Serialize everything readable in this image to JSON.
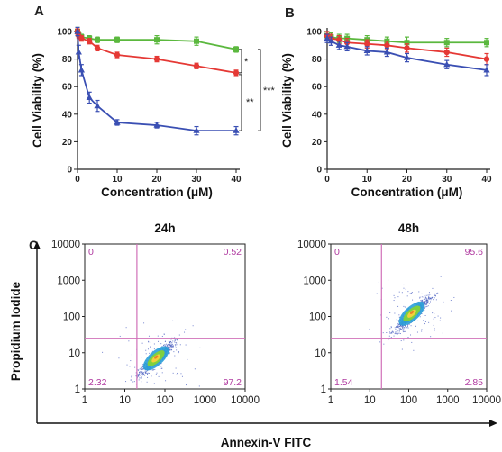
{
  "figure": {
    "panel_a_label": "A",
    "panel_b_label": "B",
    "panel_c_label": "C"
  },
  "chart_data": [
    {
      "panel": "A",
      "type": "line",
      "xlabel": "Concentration (μM)",
      "ylabel": "Cell Viability (%)",
      "xlim": [
        0,
        40
      ],
      "ylim": [
        0,
        100
      ],
      "xticks": [
        "0",
        "10",
        "20",
        "30",
        "40"
      ],
      "yticks": [
        "0",
        "20",
        "40",
        "60",
        "80",
        "100"
      ],
      "series": [
        {
          "color": "#5bb83e",
          "marker": "square",
          "x": [
            0,
            0.3,
            1,
            3,
            5,
            10,
            20,
            30,
            40
          ],
          "y": [
            100,
            98,
            96,
            95,
            94,
            94,
            94,
            93,
            87
          ],
          "err": [
            3,
            2,
            2,
            2,
            2,
            2,
            3,
            3,
            2
          ]
        },
        {
          "color": "#e53935",
          "marker": "circle",
          "x": [
            0,
            0.3,
            1,
            3,
            5,
            10,
            20,
            30,
            40
          ],
          "y": [
            100,
            97,
            95,
            93,
            88,
            83,
            80,
            75,
            70
          ],
          "err": [
            2,
            2,
            2,
            2,
            2,
            2,
            2,
            2,
            2
          ]
        },
        {
          "color": "#3a4fb3",
          "marker": "triangle",
          "x": [
            0,
            0.3,
            1,
            3,
            5,
            10,
            20,
            30,
            40
          ],
          "y": [
            100,
            85,
            72,
            52,
            46,
            34,
            32,
            28,
            28
          ],
          "err": [
            3,
            5,
            4,
            4,
            4,
            2,
            2,
            3,
            3
          ]
        }
      ],
      "significance": [
        "*",
        "**",
        "***"
      ]
    },
    {
      "panel": "B",
      "type": "line",
      "xlabel": "Concentration (μM)",
      "ylabel": "Cell Viability (%)",
      "xlim": [
        0,
        40
      ],
      "ylim": [
        0,
        100
      ],
      "xticks": [
        "0",
        "10",
        "20",
        "30",
        "40"
      ],
      "yticks": [
        "0",
        "20",
        "40",
        "60",
        "80",
        "100"
      ],
      "series": [
        {
          "color": "#5bb83e",
          "marker": "square",
          "x": [
            0,
            1,
            3,
            5,
            10,
            15,
            20,
            30,
            40
          ],
          "y": [
            97,
            96,
            95,
            95,
            94,
            93,
            92,
            92,
            92
          ],
          "err": [
            3,
            3,
            3,
            3,
            3,
            3,
            4,
            3,
            3
          ]
        },
        {
          "color": "#e53935",
          "marker": "circle",
          "x": [
            0,
            1,
            3,
            5,
            10,
            15,
            20,
            30,
            40
          ],
          "y": [
            97,
            95,
            94,
            92,
            91,
            90,
            88,
            85,
            80
          ],
          "err": [
            3,
            3,
            3,
            3,
            3,
            3,
            3,
            3,
            4
          ]
        },
        {
          "color": "#3a4fb3",
          "marker": "triangle",
          "x": [
            0,
            1,
            3,
            5,
            10,
            15,
            20,
            30,
            40
          ],
          "y": [
            95,
            93,
            90,
            89,
            86,
            85,
            81,
            76,
            72
          ],
          "err": [
            3,
            3,
            3,
            3,
            3,
            3,
            3,
            3,
            4
          ]
        }
      ]
    },
    {
      "panel": "C-24h",
      "type": "scatter",
      "title": "24h",
      "xscale": "log",
      "yscale": "log",
      "xlim": [
        1,
        10000
      ],
      "ylim": [
        1,
        10000
      ],
      "ticks": [
        "1",
        "10",
        "100",
        "1000",
        "10000"
      ],
      "gates": {
        "x": 20,
        "y": 25
      },
      "quadrants": {
        "upper_left": "0",
        "upper_right": "0.52",
        "lower_left": "2.32",
        "lower_right": "97.2"
      },
      "cluster_center": [
        60,
        7
      ],
      "xlabel": "Annexin-V FITC",
      "ylabel": "Propidium Iodide"
    },
    {
      "panel": "C-48h",
      "type": "scatter",
      "title": "48h",
      "xscale": "log",
      "yscale": "log",
      "xlim": [
        1,
        10000
      ],
      "ylim": [
        1,
        10000
      ],
      "ticks": [
        "1",
        "10",
        "100",
        "1000",
        "10000"
      ],
      "gates": {
        "x": 20,
        "y": 25
      },
      "quadrants": {
        "upper_left": "0",
        "upper_right": "95.6",
        "lower_left": "1.54",
        "lower_right": "2.85"
      },
      "cluster_center": [
        120,
        120
      ],
      "xlabel": "Annexin-V FITC",
      "ylabel": "Propidium Iodide"
    }
  ]
}
